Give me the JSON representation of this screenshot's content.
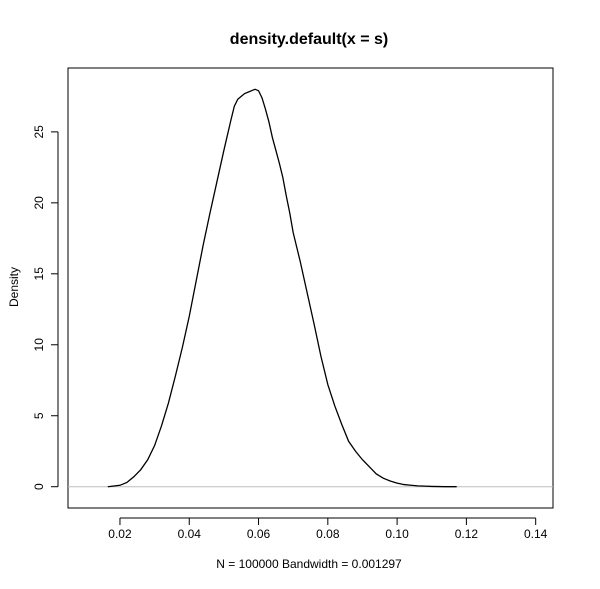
{
  "chart_data": {
    "type": "line",
    "title": "density.default(x = s)",
    "xlabel": "N = 100000   Bandwidth = 0.001297",
    "ylabel": "Density",
    "xlim": [
      0.005,
      0.145
    ],
    "ylim": [
      -1.5,
      29.5
    ],
    "xticks": [
      0.02,
      0.04,
      0.06,
      0.08,
      0.1,
      0.12,
      0.14
    ],
    "xtick_labels": [
      "0.02",
      "0.04",
      "0.06",
      "0.08",
      "0.10",
      "0.12",
      "0.14"
    ],
    "yticks": [
      0,
      5,
      10,
      15,
      20,
      25
    ],
    "ytick_labels": [
      "0",
      "5",
      "10",
      "15",
      "20",
      "25"
    ],
    "grid": false,
    "baseline": 0,
    "series": [
      {
        "color": "#000000",
        "x": [
          0.0165,
          0.02,
          0.022,
          0.024,
          0.026,
          0.028,
          0.03,
          0.032,
          0.034,
          0.036,
          0.038,
          0.04,
          0.042,
          0.044,
          0.046,
          0.048,
          0.05,
          0.052,
          0.053,
          0.054,
          0.055,
          0.056,
          0.057,
          0.058,
          0.059,
          0.06,
          0.061,
          0.062,
          0.063,
          0.064,
          0.065,
          0.066,
          0.067,
          0.068,
          0.069,
          0.07,
          0.072,
          0.074,
          0.076,
          0.078,
          0.08,
          0.082,
          0.084,
          0.086,
          0.088,
          0.09,
          0.092,
          0.094,
          0.096,
          0.098,
          0.1,
          0.102,
          0.104,
          0.106,
          0.108,
          0.11,
          0.112,
          0.114,
          0.1172
        ],
        "y": [
          0.0,
          0.1,
          0.3,
          0.7,
          1.2,
          1.9,
          2.9,
          4.3,
          5.9,
          7.8,
          9.8,
          12.0,
          14.5,
          17.0,
          19.3,
          21.5,
          23.7,
          25.8,
          26.8,
          27.3,
          27.5,
          27.7,
          27.8,
          27.9,
          28.0,
          27.9,
          27.4,
          26.6,
          25.7,
          24.6,
          23.7,
          22.8,
          21.8,
          20.5,
          19.3,
          17.9,
          15.9,
          13.7,
          11.5,
          9.2,
          7.2,
          5.7,
          4.4,
          3.2,
          2.5,
          1.9,
          1.4,
          0.9,
          0.6,
          0.4,
          0.25,
          0.15,
          0.1,
          0.06,
          0.04,
          0.02,
          0.01,
          0.0,
          0.0
        ]
      }
    ]
  }
}
